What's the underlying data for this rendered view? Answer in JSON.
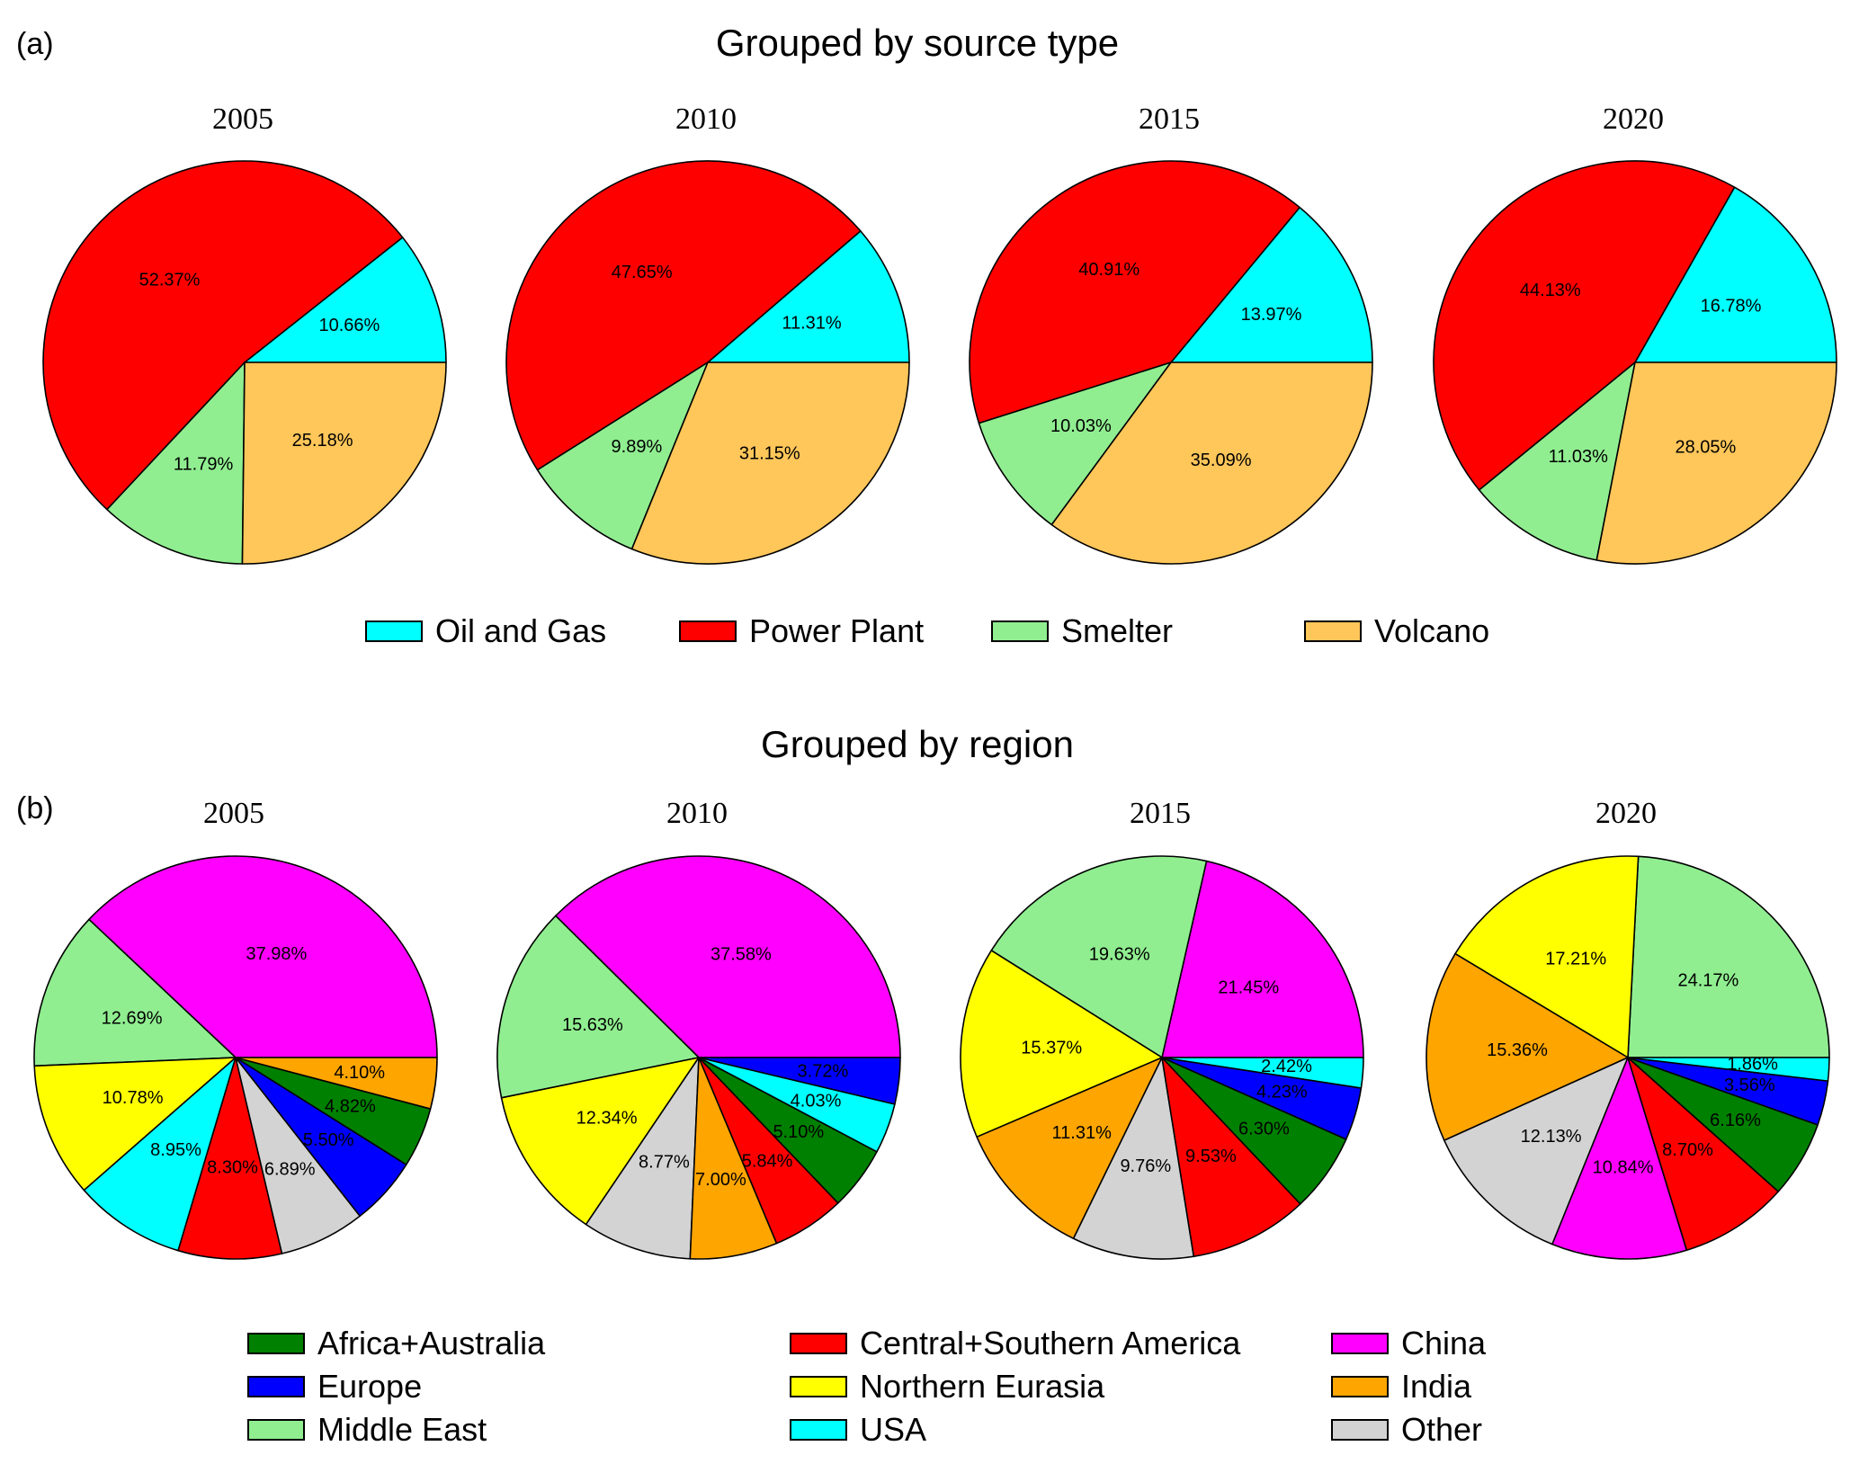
{
  "section_a": {
    "label": "(a)",
    "title": "Grouped by source type"
  },
  "section_b": {
    "label": "(b)",
    "title": "Grouped by region"
  },
  "source_legend": [
    {
      "label": "Oil and Gas",
      "color": "#00FFFF"
    },
    {
      "label": "Power Plant",
      "color": "#FF0000"
    },
    {
      "label": "Smelter",
      "color": "#90EE90"
    },
    {
      "label": "Volcano",
      "color": "#FFC65A"
    }
  ],
  "region_legend": [
    {
      "label": "Africa+Australia",
      "color": "#008000"
    },
    {
      "label": "Europe",
      "color": "#0000FF"
    },
    {
      "label": "Middle East",
      "color": "#90EE90"
    },
    {
      "label": "Central+Southern America",
      "color": "#FF0000"
    },
    {
      "label": "Northern Eurasia",
      "color": "#FFFF00"
    },
    {
      "label": "USA",
      "color": "#00FFFF"
    },
    {
      "label": "China",
      "color": "#FF00FF"
    },
    {
      "label": "India",
      "color": "#FFA500"
    },
    {
      "label": "Other",
      "color": "#D3D3D3"
    }
  ],
  "chart_data": [
    {
      "type": "pie",
      "panel": "a",
      "title": "2005",
      "start": "east, counterclockwise",
      "slices": [
        {
          "name": "Oil and Gas",
          "value": 10.66,
          "label": "10.66%",
          "color": "#00FFFF"
        },
        {
          "name": "Power Plant",
          "value": 52.37,
          "label": "52.37%",
          "color": "#FF0000"
        },
        {
          "name": "Smelter",
          "value": 11.79,
          "label": "11.79%",
          "color": "#90EE90"
        },
        {
          "name": "Volcano",
          "value": 25.18,
          "label": "25.18%",
          "color": "#FFC65A"
        }
      ]
    },
    {
      "type": "pie",
      "panel": "a",
      "title": "2010",
      "start": "east, counterclockwise",
      "slices": [
        {
          "name": "Oil and Gas",
          "value": 11.31,
          "label": "11.31%",
          "color": "#00FFFF"
        },
        {
          "name": "Power Plant",
          "value": 47.65,
          "label": "47.65%",
          "color": "#FF0000"
        },
        {
          "name": "Smelter",
          "value": 9.89,
          "label": "9.89%",
          "color": "#90EE90"
        },
        {
          "name": "Volcano",
          "value": 31.15,
          "label": "31.15%",
          "color": "#FFC65A"
        }
      ]
    },
    {
      "type": "pie",
      "panel": "a",
      "title": "2015",
      "start": "east, counterclockwise",
      "slices": [
        {
          "name": "Oil and Gas",
          "value": 13.97,
          "label": "13.97%",
          "color": "#00FFFF"
        },
        {
          "name": "Power Plant",
          "value": 40.91,
          "label": "40.91%",
          "color": "#FF0000"
        },
        {
          "name": "Smelter",
          "value": 10.03,
          "label": "10.03%",
          "color": "#90EE90"
        },
        {
          "name": "Volcano",
          "value": 35.09,
          "label": "35.09%",
          "color": "#FFC65A"
        }
      ]
    },
    {
      "type": "pie",
      "panel": "a",
      "title": "2020",
      "start": "east, counterclockwise",
      "slices": [
        {
          "name": "Oil and Gas",
          "value": 16.78,
          "label": "16.78%",
          "color": "#00FFFF"
        },
        {
          "name": "Power Plant",
          "value": 44.13,
          "label": "44.13%",
          "color": "#FF0000"
        },
        {
          "name": "Smelter",
          "value": 11.03,
          "label": "11.03%",
          "color": "#90EE90"
        },
        {
          "name": "Volcano",
          "value": 28.05,
          "label": "28.05%",
          "color": "#FFC65A"
        }
      ]
    },
    {
      "type": "pie",
      "panel": "b",
      "title": "2005",
      "start": "east, counterclockwise",
      "slices": [
        {
          "name": "China",
          "value": 37.98,
          "label": "37.98%",
          "color": "#FF00FF"
        },
        {
          "name": "Middle East",
          "value": 12.69,
          "label": "12.69%",
          "color": "#90EE90"
        },
        {
          "name": "Northern Eurasia",
          "value": 10.78,
          "label": "10.78%",
          "color": "#FFFF00"
        },
        {
          "name": "USA",
          "value": 8.95,
          "label": "8.95%",
          "color": "#00FFFF"
        },
        {
          "name": "Central+Southern America",
          "value": 8.3,
          "label": "8.30%",
          "color": "#FF0000"
        },
        {
          "name": "Other",
          "value": 6.89,
          "label": "6.89%",
          "color": "#D3D3D3"
        },
        {
          "name": "Europe",
          "value": 5.5,
          "label": "5.50%",
          "color": "#0000FF"
        },
        {
          "name": "Africa+Australia",
          "value": 4.82,
          "label": "4.82%",
          "color": "#008000"
        },
        {
          "name": "India",
          "value": 4.1,
          "label": "4.10%",
          "color": "#FFA500"
        }
      ]
    },
    {
      "type": "pie",
      "panel": "b",
      "title": "2010",
      "start": "east, counterclockwise",
      "slices": [
        {
          "name": "China",
          "value": 37.58,
          "label": "37.58%",
          "color": "#FF00FF"
        },
        {
          "name": "Middle East",
          "value": 15.63,
          "label": "15.63%",
          "color": "#90EE90"
        },
        {
          "name": "Northern Eurasia",
          "value": 12.34,
          "label": "12.34%",
          "color": "#FFFF00"
        },
        {
          "name": "Other",
          "value": 8.77,
          "label": "8.77%",
          "color": "#D3D3D3"
        },
        {
          "name": "India",
          "value": 7.0,
          "label": "7.00%",
          "color": "#FFA500"
        },
        {
          "name": "Central+Southern America",
          "value": 5.84,
          "label": "5.84%",
          "color": "#FF0000"
        },
        {
          "name": "Africa+Australia",
          "value": 5.1,
          "label": "5.10%",
          "color": "#008000"
        },
        {
          "name": "USA",
          "value": 4.03,
          "label": "4.03%",
          "color": "#00FFFF"
        },
        {
          "name": "Europe",
          "value": 3.72,
          "label": "3.72%",
          "color": "#0000FF"
        }
      ]
    },
    {
      "type": "pie",
      "panel": "b",
      "title": "2015",
      "start": "east, counterclockwise",
      "slices": [
        {
          "name": "China",
          "value": 21.45,
          "label": "21.45%",
          "color": "#FF00FF"
        },
        {
          "name": "Middle East",
          "value": 19.63,
          "label": "19.63%",
          "color": "#90EE90"
        },
        {
          "name": "Northern Eurasia",
          "value": 15.37,
          "label": "15.37%",
          "color": "#FFFF00"
        },
        {
          "name": "India",
          "value": 11.31,
          "label": "11.31%",
          "color": "#FFA500"
        },
        {
          "name": "Other",
          "value": 9.76,
          "label": "9.76%",
          "color": "#D3D3D3"
        },
        {
          "name": "Central+Southern America",
          "value": 9.53,
          "label": "9.53%",
          "color": "#FF0000"
        },
        {
          "name": "Africa+Australia",
          "value": 6.3,
          "label": "6.30%",
          "color": "#008000"
        },
        {
          "name": "Europe",
          "value": 4.23,
          "label": "4.23%",
          "color": "#0000FF"
        },
        {
          "name": "USA",
          "value": 2.42,
          "label": "2.42%",
          "color": "#00FFFF"
        }
      ]
    },
    {
      "type": "pie",
      "panel": "b",
      "title": "2020",
      "start": "east, counterclockwise",
      "slices": [
        {
          "name": "Middle East",
          "value": 24.17,
          "label": "24.17%",
          "color": "#90EE90"
        },
        {
          "name": "Northern Eurasia",
          "value": 17.21,
          "label": "17.21%",
          "color": "#FFFF00"
        },
        {
          "name": "India",
          "value": 15.36,
          "label": "15.36%",
          "color": "#FFA500"
        },
        {
          "name": "Other",
          "value": 12.13,
          "label": "12.13%",
          "color": "#D3D3D3"
        },
        {
          "name": "China",
          "value": 10.84,
          "label": "10.84%",
          "color": "#FF00FF"
        },
        {
          "name": "Central+Southern America",
          "value": 8.7,
          "label": "8.70%",
          "color": "#FF0000"
        },
        {
          "name": "Africa+Australia",
          "value": 6.16,
          "label": "6.16%",
          "color": "#008000"
        },
        {
          "name": "Europe",
          "value": 3.56,
          "label": "3.56%",
          "color": "#0000FF"
        },
        {
          "name": "USA",
          "value": 1.86,
          "label": "1.86%",
          "color": "#00FFFF"
        }
      ]
    }
  ]
}
